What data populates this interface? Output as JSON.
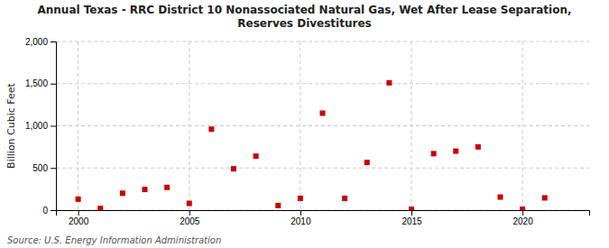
{
  "chart_data": {
    "type": "scatter",
    "title": "Annual Texas - RRC District 10 Nonassociated Natural Gas, Wet After Lease Separation,\nReserves Divestitures",
    "ylabel": "Billion Cubic Feet",
    "source": "Source: U.S. Energy Information Administration",
    "x": [
      2000,
      2001,
      2002,
      2003,
      2004,
      2005,
      2006,
      2007,
      2008,
      2009,
      2010,
      2011,
      2012,
      2013,
      2014,
      2015,
      2016,
      2017,
      2018,
      2019,
      2020,
      2021
    ],
    "values": [
      130,
      20,
      200,
      245,
      270,
      80,
      960,
      490,
      640,
      55,
      140,
      1150,
      140,
      565,
      1510,
      10,
      670,
      700,
      750,
      155,
      10,
      145
    ],
    "color": "#cc0000",
    "marker": "square",
    "xlim": [
      1999,
      2023
    ],
    "xticks": [
      2000,
      2005,
      2010,
      2015,
      2020
    ],
    "ylim": [
      0,
      2000
    ],
    "yticks": [
      0,
      500,
      {
        "value": 1000,
        "label": "1,000"
      },
      {
        "value": 1500,
        "label": "1,500"
      },
      {
        "value": 2000,
        "label": "2,000"
      }
    ],
    "grid": true
  }
}
